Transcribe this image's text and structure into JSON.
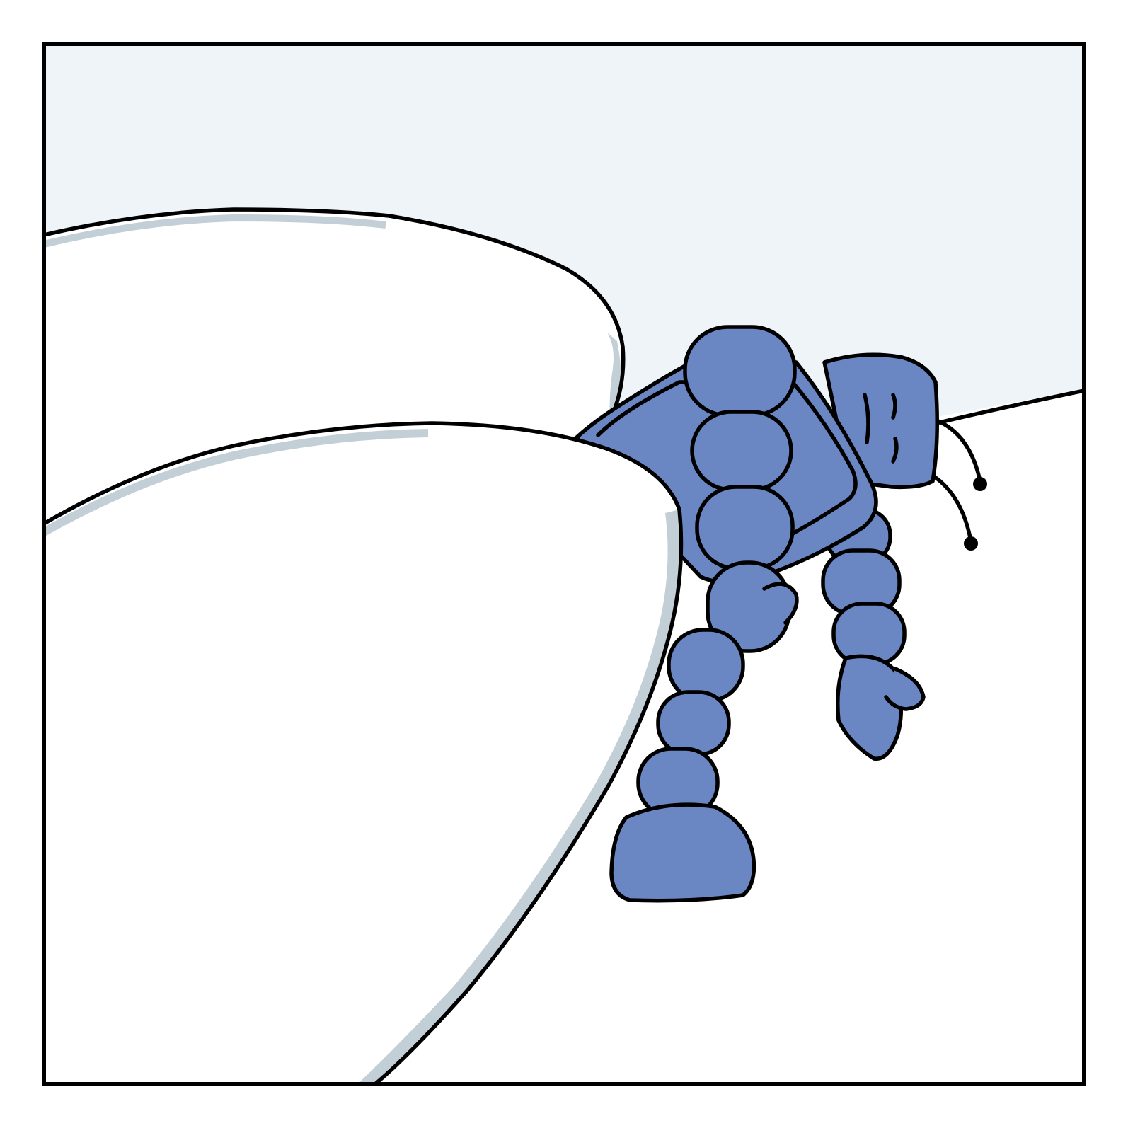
{
  "scene": {
    "kind": "comic-panel",
    "subject": "blue-segmented-robot-behind-snow-mounds",
    "colors": {
      "sky": "#eef4f8",
      "snow": "#ffffff",
      "snow_shadow": "#c3cfd6",
      "robot_body": "#6a87c4",
      "robot_shade": "#4f6cb2",
      "ink": "#000000",
      "frame": "#000000"
    }
  }
}
